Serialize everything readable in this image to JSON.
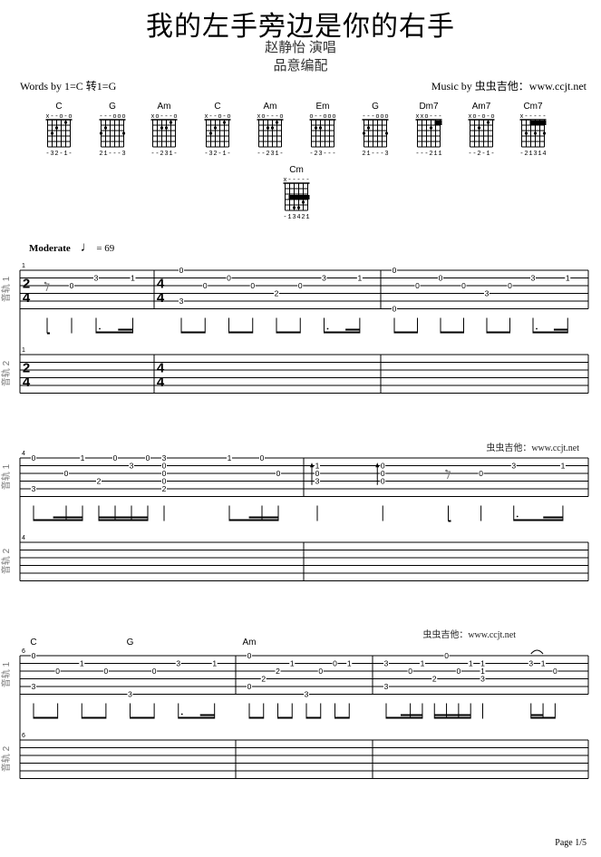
{
  "header": {
    "title": "我的左手旁边是你的右手",
    "singer": "赵静怡 演唱",
    "arranger": "品意编配",
    "words": "Words by 1=C 转1=G",
    "music": "Music by 虫虫吉他：www.ccjt.net"
  },
  "tempo": {
    "label": "Moderate",
    "value": "= 69",
    "note_icon": "quarter-note-icon"
  },
  "watermark": "虫虫吉他：www.ccjt.net",
  "footer": {
    "page": "Page 1/5"
  },
  "track_labels": [
    "音轨 1",
    "音轨 2"
  ],
  "chords": [
    {
      "name": "C",
      "marks": "x--o-o",
      "fingers": "-32-1-",
      "dots": [
        [
          5,
          3
        ],
        [
          4,
          2
        ],
        [
          2,
          1
        ]
      ]
    },
    {
      "name": "G",
      "marks": "---ooo",
      "fingers": "21---3",
      "dots": [
        [
          6,
          3
        ],
        [
          5,
          2
        ],
        [
          1,
          3
        ]
      ]
    },
    {
      "name": "Am",
      "marks": "xo---o",
      "fingers": "--231-",
      "dots": [
        [
          4,
          2
        ],
        [
          3,
          2
        ],
        [
          2,
          1
        ]
      ]
    },
    {
      "name": "C",
      "marks": "x--o-o",
      "fingers": "-32-1-",
      "dots": [
        [
          5,
          3
        ],
        [
          4,
          2
        ],
        [
          2,
          1
        ]
      ]
    },
    {
      "name": "Am",
      "marks": "xo---o",
      "fingers": "--231-",
      "dots": [
        [
          4,
          2
        ],
        [
          3,
          2
        ],
        [
          2,
          1
        ]
      ]
    },
    {
      "name": "Em",
      "marks": "o--ooo",
      "fingers": "-23---",
      "dots": [
        [
          5,
          2
        ],
        [
          4,
          2
        ]
      ]
    },
    {
      "name": "G",
      "marks": "---ooo",
      "fingers": "21---3",
      "dots": [
        [
          6,
          3
        ],
        [
          5,
          2
        ],
        [
          1,
          3
        ]
      ]
    },
    {
      "name": "Dm7",
      "marks": "xxo---",
      "fingers": "---211",
      "dots": [
        [
          3,
          2
        ]
      ],
      "barre": [
        1,
        2,
        1
      ]
    },
    {
      "name": "Am7",
      "marks": "xo-o-o",
      "fingers": "--2-1-",
      "dots": [
        [
          4,
          2
        ],
        [
          2,
          1
        ]
      ]
    },
    {
      "name": "Cm7",
      "marks": "x-----",
      "fingers": "-21314",
      "dots": [
        [
          5,
          3
        ],
        [
          3,
          3
        ],
        [
          1,
          3
        ]
      ],
      "barre": [
        1,
        4,
        1
      ]
    },
    {
      "name": "Cm",
      "marks": "x-----",
      "fingers": "-13421",
      "dots": [
        [
          4,
          5
        ],
        [
          3,
          5
        ],
        [
          2,
          4
        ]
      ],
      "barre": [
        3,
        5,
        1
      ]
    }
  ],
  "systems": [
    {
      "first_measure": "1",
      "measures": [
        {
          "beats": 2,
          "timesig": [
            "2",
            "4"
          ],
          "rests": [
            0
          ],
          "notes": [
            [
              0.5,
              3,
              0
            ],
            [
              1,
              2,
              3
            ],
            [
              1.75,
              2,
              1
            ]
          ]
        },
        {
          "beats": 4,
          "timesig": [
            "4",
            "4"
          ],
          "notes": [
            [
              0,
              1,
              0
            ],
            [
              0,
              5,
              3
            ],
            [
              0.5,
              3,
              0
            ],
            [
              1,
              2,
              0
            ],
            [
              1.5,
              3,
              0
            ],
            [
              2,
              4,
              2
            ],
            [
              2.5,
              3,
              0
            ],
            [
              3,
              2,
              3
            ],
            [
              3.75,
              2,
              1
            ]
          ]
        },
        {
          "beats": 4,
          "notes": [
            [
              0,
              1,
              0
            ],
            [
              0,
              6,
              0
            ],
            [
              0.5,
              3,
              0
            ],
            [
              1,
              2,
              0
            ],
            [
              1.5,
              3,
              0
            ],
            [
              2,
              4,
              3
            ],
            [
              2.5,
              3,
              0
            ],
            [
              3,
              2,
              3
            ],
            [
              3.75,
              2,
              1
            ]
          ]
        }
      ]
    },
    {
      "first_measure": "4",
      "measures": [
        {
          "beats": 4,
          "notes": [
            [
              0,
              1,
              0
            ],
            [
              0,
              5,
              3
            ],
            [
              0.5,
              3,
              0
            ],
            [
              0.75,
              1,
              1
            ],
            [
              1,
              4,
              2
            ],
            [
              1.25,
              1,
              0
            ],
            [
              1.5,
              2,
              3
            ],
            [
              1.75,
              1,
              0
            ],
            [
              2,
              1,
              3
            ],
            [
              2,
              2,
              0
            ],
            [
              2,
              3,
              0
            ],
            [
              2,
              4,
              0
            ],
            [
              2,
              5,
              2
            ],
            [
              3,
              1,
              1
            ],
            [
              3.5,
              1,
              0
            ],
            [
              3.75,
              3,
              0
            ]
          ]
        },
        {
          "beats": 4,
          "rests": [
            2
          ],
          "arpeggio": [
            0,
            1
          ],
          "notes": [
            [
              0,
              2,
              1
            ],
            [
              0,
              3,
              0
            ],
            [
              0,
              4,
              3
            ],
            [
              1,
              2,
              0
            ],
            [
              1,
              3,
              0
            ],
            [
              1,
              4,
              0
            ],
            [
              2.5,
              3,
              0
            ],
            [
              3,
              2,
              3
            ],
            [
              3.75,
              2,
              1
            ]
          ]
        }
      ]
    },
    {
      "first_measure": "6",
      "measures": [
        {
          "beats": 4,
          "chords": [
            [
              0,
              "C"
            ],
            [
              2,
              "G"
            ]
          ],
          "notes": [
            [
              0,
              1,
              0
            ],
            [
              0,
              5,
              3
            ],
            [
              0.5,
              3,
              0
            ],
            [
              1,
              2,
              1
            ],
            [
              1.5,
              3,
              0
            ],
            [
              2,
              6,
              3
            ],
            [
              2.5,
              3,
              0
            ],
            [
              3,
              2,
              3
            ],
            [
              3.75,
              2,
              1
            ]
          ]
        },
        {
          "beats": 4,
          "chords": [
            [
              0,
              "Am"
            ]
          ],
          "notes": [
            [
              0,
              1,
              0
            ],
            [
              0,
              5,
              0
            ],
            [
              0.5,
              4,
              2
            ],
            [
              1,
              3,
              2
            ],
            [
              1.5,
              2,
              1
            ],
            [
              2,
              6,
              3
            ],
            [
              2.5,
              3,
              0
            ],
            [
              3,
              2,
              0
            ],
            [
              3.5,
              2,
              1
            ]
          ]
        },
        {
          "beats": 4,
          "tie": [
            3,
            3.25
          ],
          "notes": [
            [
              0,
              2,
              3
            ],
            [
              0,
              5,
              3
            ],
            [
              0.5,
              3,
              0
            ],
            [
              0.75,
              2,
              1
            ],
            [
              1,
              4,
              2
            ],
            [
              1.25,
              1,
              0
            ],
            [
              1.5,
              3,
              0
            ],
            [
              1.75,
              2,
              1
            ],
            [
              2,
              2,
              1
            ],
            [
              2,
              3,
              1
            ],
            [
              2,
              4,
              3
            ],
            [
              3,
              2,
              3
            ],
            [
              3.25,
              2,
              1
            ],
            [
              3.5,
              3,
              0
            ]
          ]
        }
      ]
    }
  ]
}
